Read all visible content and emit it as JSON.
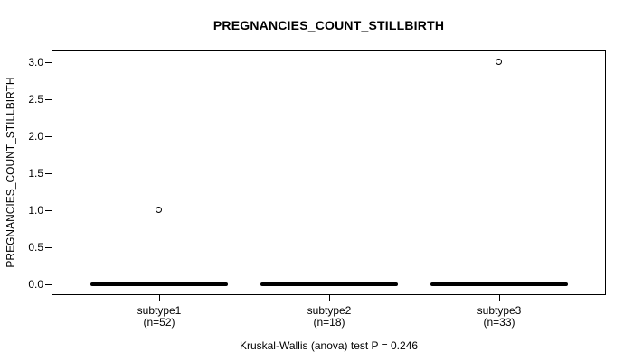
{
  "figure": {
    "background_color": "#ffffff",
    "foreground_color": "#000000"
  },
  "chart_data": {
    "type": "boxplot",
    "title": "PREGNANCIES_COUNT_STILLBIRTH",
    "ylabel": "PREGNANCIES_COUNT_STILLBIRTH",
    "xlabel": "",
    "ylim": [
      0.0,
      3.0
    ],
    "ytick_labels": [
      "0.0",
      "0.5",
      "1.0",
      "1.5",
      "2.0",
      "2.5",
      "3.0"
    ],
    "grid": "off",
    "groups": [
      {
        "label": "subtype1",
        "sublabel": "(n=52)",
        "n": 52,
        "median": 0,
        "q1": 0,
        "q3": 0,
        "whisker_low": 0,
        "whisker_high": 0,
        "outliers": [
          1.0
        ]
      },
      {
        "label": "subtype2",
        "sublabel": "(n=18)",
        "n": 18,
        "median": 0,
        "q1": 0,
        "q3": 0,
        "whisker_low": 0,
        "whisker_high": 0,
        "outliers": []
      },
      {
        "label": "subtype3",
        "sublabel": "(n=33)",
        "n": 33,
        "median": 0,
        "q1": 0,
        "q3": 0,
        "whisker_low": 0,
        "whisker_high": 0,
        "outliers": [
          3.0
        ]
      }
    ],
    "caption": "Kruskal-Wallis (anova) test P = 0.246",
    "statistical_test": {
      "name": "Kruskal-Wallis (anova) test",
      "p_value": 0.246
    }
  }
}
